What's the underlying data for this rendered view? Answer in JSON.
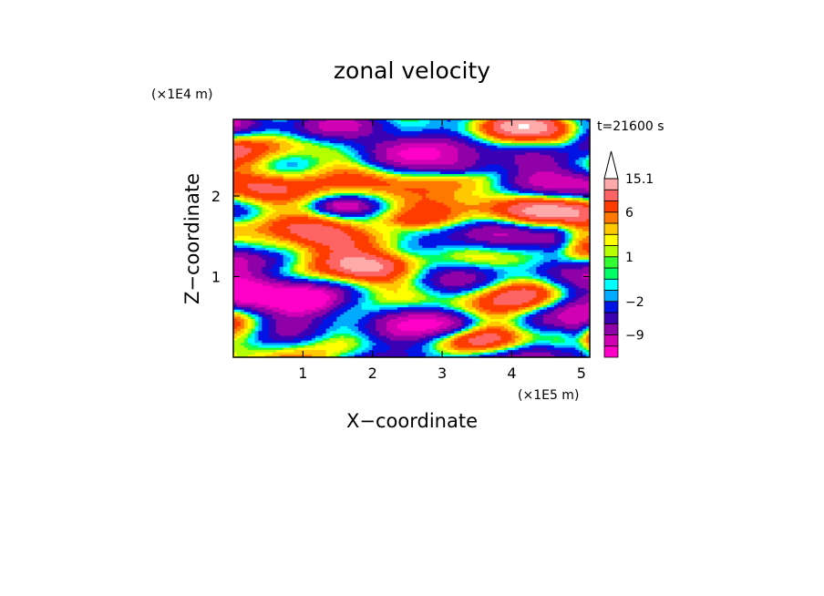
{
  "chart_data": {
    "type": "heatmap",
    "title": "zonal velocity",
    "time_label": "t=21600 s",
    "xlabel": "X−coordinate",
    "ylabel": "Z−coordinate",
    "x_scale_label": "(×1E5 m)",
    "y_scale_label": "(×1E4 m)",
    "xlim": [
      0,
      5.12
    ],
    "ylim": [
      0,
      2.95
    ],
    "x_ticks": [
      {
        "value": 1,
        "label": "1"
      },
      {
        "value": 2,
        "label": "2"
      },
      {
        "value": 3,
        "label": "3"
      },
      {
        "value": 4,
        "label": "4"
      },
      {
        "value": 5,
        "label": "5"
      }
    ],
    "y_ticks": [
      {
        "value": 1,
        "label": "1"
      },
      {
        "value": 2,
        "label": "2"
      }
    ],
    "colorbar": {
      "extend_max": true,
      "labels": [
        {
          "level": 15.1,
          "label": "15.1"
        },
        {
          "level": 6,
          "label": "6"
        },
        {
          "level": 1,
          "label": "1"
        },
        {
          "level": -2,
          "label": "−2"
        },
        {
          "level": -9,
          "label": "−9"
        }
      ],
      "bands": [
        {
          "from": -15,
          "to": -12,
          "color": "#ff00c8"
        },
        {
          "from": -12,
          "to": -9,
          "color": "#d200b4"
        },
        {
          "from": -9,
          "to": -6,
          "color": "#9000a8"
        },
        {
          "from": -6,
          "to": -4,
          "color": "#3c00b4"
        },
        {
          "from": -4,
          "to": -2,
          "color": "#0014e6"
        },
        {
          "from": -2,
          "to": -1,
          "color": "#00aaff"
        },
        {
          "from": -1,
          "to": 0,
          "color": "#00ffff"
        },
        {
          "from": 0,
          "to": 0.5,
          "color": "#00ff64"
        },
        {
          "from": 0.5,
          "to": 1,
          "color": "#32ff32"
        },
        {
          "from": 1,
          "to": 2,
          "color": "#b4ff00"
        },
        {
          "from": 2,
          "to": 3,
          "color": "#ffff00"
        },
        {
          "from": 3,
          "to": 4.5,
          "color": "#ffc800"
        },
        {
          "from": 4.5,
          "to": 6,
          "color": "#ff7800"
        },
        {
          "from": 6,
          "to": 9,
          "color": "#ff3c00"
        },
        {
          "from": 9,
          "to": 12,
          "color": "#ff6464"
        },
        {
          "from": 12,
          "to": 15.1,
          "color": "#ffaaaa"
        }
      ],
      "overflow_color": "#ffffff"
    }
  }
}
